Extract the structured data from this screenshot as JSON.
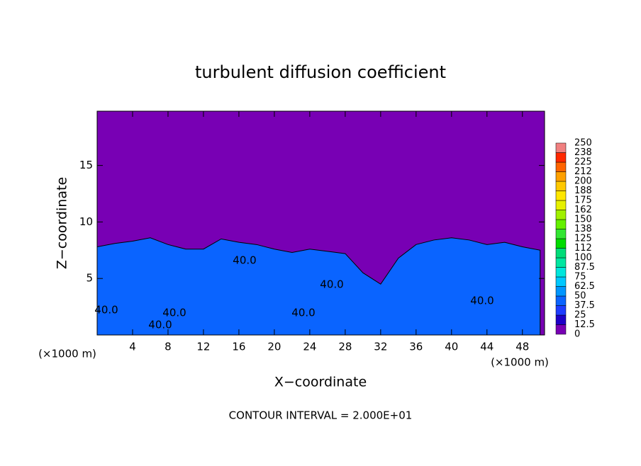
{
  "chart_data": {
    "type": "contour",
    "title": "turbulent diffusion coefficient",
    "x_label": "X−coordinate",
    "y_label": "Z−coordinate",
    "x_unit": "(×1000 m)",
    "footer": "CONTOUR INTERVAL = 2.000E+01",
    "xlim": [
      0,
      50.5
    ],
    "ylim": [
      0,
      19.8
    ],
    "xticks": [
      4,
      8,
      12,
      16,
      20,
      24,
      28,
      32,
      36,
      40,
      44,
      48
    ],
    "yticks": [
      5,
      10,
      15
    ],
    "levels": [
      0,
      12.5,
      25,
      37.5,
      50,
      62.5,
      75,
      87.5,
      100,
      112,
      125,
      138,
      150,
      162,
      175,
      188,
      200,
      212,
      225,
      238,
      250
    ],
    "colors": [
      "#7800b4",
      "#1e00c8",
      "#1e3cff",
      "#0a64ff",
      "#0096ff",
      "#00c8ff",
      "#00e6dc",
      "#00e6a0",
      "#00dc78",
      "#00dc00",
      "#32e632",
      "#64f000",
      "#a0f000",
      "#e6f000",
      "#ffe600",
      "#ffc800",
      "#ffa000",
      "#ff6400",
      "#ff2800",
      "#f08080"
    ],
    "field": {
      "x": [
        0,
        2,
        4,
        6,
        8,
        10,
        12,
        14,
        16,
        18,
        20,
        22,
        24,
        26,
        28,
        30,
        32,
        34,
        36,
        38,
        40,
        42,
        44,
        46,
        48,
        50
      ],
      "top": [
        7.8,
        8.1,
        8.3,
        8.6,
        8,
        7.6,
        7.6,
        8.5,
        8.2,
        8,
        7.6,
        7.3,
        7.6,
        7.4,
        7.2,
        5.5,
        4.5,
        6.8,
        8,
        8.4,
        8.6,
        8.4,
        8,
        8.2,
        7.8,
        7.5
      ]
    },
    "annotations": [
      "40.0",
      "40.0",
      "40.0",
      "40.0",
      "40.0",
      "40.0",
      "40.0"
    ]
  }
}
